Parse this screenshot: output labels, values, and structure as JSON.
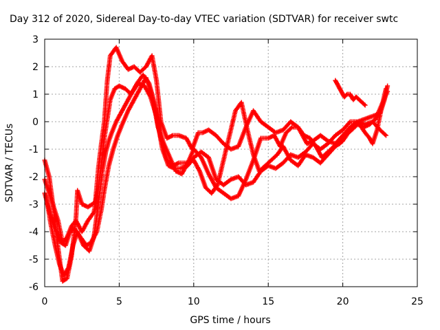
{
  "chart_data": {
    "type": "scatter",
    "title": "Day 312 of 2020, Sidereal Day-to-day VTEC variation (SDTVAR) for receiver swtc",
    "xlabel": "GPS time / hours",
    "ylabel": "SDTVAR / TECUs",
    "xlim": [
      0,
      25
    ],
    "ylim": [
      -6,
      3
    ],
    "x_ticks": [
      0,
      5,
      10,
      15,
      20,
      25
    ],
    "y_ticks": [
      -6,
      -5,
      -4,
      -3,
      -2,
      -1,
      0,
      1,
      2,
      3
    ],
    "grid": true,
    "marker": "+",
    "color": "#ff0000",
    "series": [
      {
        "name": "track-1",
        "points": [
          [
            0.0,
            -1.4
          ],
          [
            0.3,
            -2.0
          ],
          [
            0.6,
            -3.2
          ],
          [
            0.9,
            -4.6
          ],
          [
            1.2,
            -5.8
          ],
          [
            1.5,
            -5.7
          ],
          [
            1.8,
            -4.9
          ],
          [
            2.1,
            -3.5
          ],
          [
            2.2,
            -2.5
          ],
          [
            2.5,
            -3.0
          ],
          [
            2.9,
            -3.1
          ],
          [
            3.2,
            -3.0
          ],
          [
            3.4,
            -2.9
          ],
          [
            3.6,
            -1.7
          ],
          [
            3.8,
            -0.8
          ],
          [
            4.0,
            0.0
          ],
          [
            4.2,
            1.5
          ],
          [
            4.4,
            2.4
          ],
          [
            4.8,
            2.7
          ],
          [
            5.2,
            2.2
          ],
          [
            5.6,
            1.9
          ],
          [
            6.0,
            2.0
          ],
          [
            6.4,
            1.8
          ],
          [
            6.8,
            2.0
          ],
          [
            7.2,
            2.4
          ],
          [
            7.5,
            1.5
          ],
          [
            7.8,
            0.0
          ],
          [
            8.2,
            -0.6
          ],
          [
            8.6,
            -0.5
          ],
          [
            9.0,
            -0.5
          ],
          [
            9.5,
            -0.6
          ],
          [
            9.9,
            -1.0
          ],
          [
            10.3,
            -0.4
          ],
          [
            10.6,
            -0.4
          ],
          [
            11.0,
            -0.3
          ],
          [
            11.5,
            -0.5
          ],
          [
            12.0,
            -0.8
          ],
          [
            12.5,
            -1.0
          ],
          [
            13.0,
            -0.9
          ],
          [
            13.5,
            -0.2
          ],
          [
            14.0,
            0.4
          ],
          [
            14.5,
            0.0
          ],
          [
            15.0,
            -0.2
          ],
          [
            15.5,
            -0.4
          ],
          [
            16.0,
            -0.3
          ],
          [
            16.5,
            0.0
          ],
          [
            17.0,
            -0.2
          ],
          [
            17.6,
            -0.8
          ],
          [
            18.0,
            -0.7
          ],
          [
            18.5,
            -0.5
          ],
          [
            19.0,
            -0.7
          ],
          [
            19.5,
            -0.8
          ],
          [
            20.0,
            -0.5
          ],
          [
            20.5,
            -0.2
          ],
          [
            21.0,
            0.0
          ],
          [
            21.5,
            -0.4
          ],
          [
            21.8,
            -0.6
          ],
          [
            22.0,
            -0.8
          ],
          [
            22.3,
            -0.3
          ],
          [
            22.6,
            0.5
          ],
          [
            22.9,
            1.2
          ]
        ]
      },
      {
        "name": "track-2",
        "points": [
          [
            0.0,
            -2.1
          ],
          [
            0.3,
            -2.6
          ],
          [
            0.6,
            -3.1
          ],
          [
            0.9,
            -3.6
          ],
          [
            1.2,
            -4.4
          ],
          [
            1.5,
            -4.2
          ],
          [
            1.8,
            -3.8
          ],
          [
            2.1,
            -3.6
          ],
          [
            2.5,
            -4.0
          ],
          [
            2.9,
            -3.6
          ],
          [
            3.3,
            -3.3
          ],
          [
            3.6,
            -2.4
          ],
          [
            3.8,
            -1.6
          ],
          [
            4.0,
            -0.6
          ],
          [
            4.2,
            0.1
          ],
          [
            4.4,
            0.8
          ],
          [
            4.7,
            1.2
          ],
          [
            5.0,
            1.3
          ],
          [
            5.4,
            1.2
          ],
          [
            5.8,
            1.0
          ],
          [
            6.2,
            1.4
          ],
          [
            6.6,
            1.7
          ],
          [
            7.0,
            1.4
          ],
          [
            7.4,
            0.6
          ],
          [
            7.8,
            -0.6
          ],
          [
            8.2,
            -1.4
          ],
          [
            8.6,
            -1.6
          ],
          [
            9.0,
            -1.5
          ],
          [
            9.5,
            -1.5
          ],
          [
            10.0,
            -1.4
          ],
          [
            10.4,
            -1.8
          ],
          [
            10.8,
            -2.4
          ],
          [
            11.2,
            -2.6
          ],
          [
            11.6,
            -2.3
          ],
          [
            12.0,
            -1.4
          ],
          [
            12.4,
            -0.5
          ],
          [
            12.8,
            0.4
          ],
          [
            13.2,
            0.7
          ],
          [
            13.6,
            -0.3
          ],
          [
            14.0,
            -1.2
          ],
          [
            14.4,
            -1.8
          ],
          [
            14.8,
            -1.6
          ],
          [
            15.2,
            -1.4
          ],
          [
            15.6,
            -1.2
          ],
          [
            16.0,
            -0.9
          ],
          [
            16.5,
            -1.4
          ],
          [
            17.0,
            -1.6
          ],
          [
            17.5,
            -1.2
          ],
          [
            18.0,
            -1.3
          ],
          [
            18.5,
            -1.5
          ],
          [
            19.0,
            -1.2
          ],
          [
            19.5,
            -0.9
          ],
          [
            20.0,
            -0.7
          ],
          [
            20.5,
            -0.3
          ],
          [
            21.0,
            0.0
          ],
          [
            21.5,
            0.1
          ],
          [
            22.0,
            0.2
          ],
          [
            22.5,
            0.3
          ],
          [
            22.8,
            0.8
          ],
          [
            23.0,
            1.3
          ]
        ]
      },
      {
        "name": "track-3",
        "points": [
          [
            0.1,
            -2.7
          ],
          [
            0.4,
            -3.7
          ],
          [
            0.7,
            -4.5
          ],
          [
            1.0,
            -5.2
          ],
          [
            1.3,
            -5.6
          ],
          [
            1.6,
            -5.3
          ],
          [
            1.9,
            -4.5
          ],
          [
            2.2,
            -4.0
          ],
          [
            2.6,
            -4.5
          ],
          [
            3.0,
            -4.7
          ],
          [
            3.3,
            -4.2
          ],
          [
            3.6,
            -3.0
          ],
          [
            3.9,
            -1.7
          ],
          [
            4.1,
            -1.1
          ],
          [
            4.3,
            -0.7
          ],
          [
            4.5,
            -0.4
          ],
          [
            4.8,
            0.0
          ],
          [
            5.1,
            0.3
          ],
          [
            5.5,
            0.7
          ],
          [
            5.9,
            1.1
          ],
          [
            6.3,
            1.4
          ],
          [
            6.7,
            1.3
          ],
          [
            7.1,
            0.9
          ],
          [
            7.5,
            0.2
          ],
          [
            7.9,
            -1.0
          ],
          [
            8.3,
            -1.6
          ],
          [
            8.7,
            -1.7
          ],
          [
            9.1,
            -1.7
          ],
          [
            9.6,
            -1.6
          ],
          [
            10.0,
            -1.3
          ],
          [
            10.5,
            -1.1
          ],
          [
            11.0,
            -1.3
          ],
          [
            11.5,
            -2.1
          ],
          [
            12.0,
            -2.3
          ],
          [
            12.5,
            -2.1
          ],
          [
            13.0,
            -2.0
          ],
          [
            13.5,
            -2.3
          ],
          [
            14.0,
            -2.2
          ],
          [
            14.5,
            -1.8
          ],
          [
            15.0,
            -1.6
          ],
          [
            15.5,
            -1.7
          ],
          [
            16.0,
            -1.5
          ],
          [
            16.5,
            -1.2
          ],
          [
            17.0,
            -1.3
          ],
          [
            17.5,
            -1.1
          ],
          [
            18.0,
            -0.8
          ],
          [
            18.5,
            -1.0
          ],
          [
            19.0,
            -0.8
          ],
          [
            19.5,
            -0.5
          ],
          [
            20.0,
            -0.3
          ],
          [
            20.5,
            0.0
          ],
          [
            21.0,
            0.0
          ],
          [
            21.5,
            -0.1
          ],
          [
            22.0,
            0.0
          ],
          [
            22.5,
            -0.3
          ],
          [
            22.9,
            -0.5
          ]
        ]
      },
      {
        "name": "track-4",
        "points": [
          [
            0.0,
            -2.6
          ],
          [
            0.2,
            -3.0
          ],
          [
            0.5,
            -3.6
          ],
          [
            0.8,
            -4.0
          ],
          [
            1.1,
            -4.4
          ],
          [
            1.4,
            -4.5
          ],
          [
            1.7,
            -4.0
          ],
          [
            2.0,
            -3.9
          ],
          [
            2.4,
            -4.2
          ],
          [
            2.8,
            -4.5
          ],
          [
            3.1,
            -4.4
          ],
          [
            3.5,
            -4.0
          ],
          [
            3.8,
            -3.2
          ],
          [
            4.0,
            -2.5
          ],
          [
            4.3,
            -1.6
          ],
          [
            4.6,
            -1.0
          ],
          [
            4.9,
            -0.5
          ],
          [
            5.2,
            -0.1
          ],
          [
            5.6,
            0.4
          ],
          [
            6.0,
            0.8
          ],
          [
            6.4,
            1.2
          ],
          [
            6.8,
            1.6
          ],
          [
            7.2,
            1.0
          ],
          [
            7.6,
            -0.2
          ],
          [
            8.0,
            -0.8
          ],
          [
            8.4,
            -1.3
          ],
          [
            8.8,
            -1.8
          ],
          [
            9.2,
            -1.9
          ],
          [
            9.6,
            -1.5
          ],
          [
            10.0,
            -1.0
          ],
          [
            10.5,
            -1.3
          ],
          [
            11.0,
            -1.9
          ],
          [
            11.5,
            -2.4
          ],
          [
            12.0,
            -2.6
          ],
          [
            12.5,
            -2.8
          ],
          [
            13.0,
            -2.7
          ],
          [
            13.5,
            -2.1
          ],
          [
            14.0,
            -1.4
          ],
          [
            14.5,
            -0.6
          ],
          [
            15.0,
            -0.6
          ],
          [
            15.4,
            -0.5
          ],
          [
            15.8,
            -0.9
          ],
          [
            16.2,
            -0.4
          ],
          [
            16.6,
            -0.2
          ],
          [
            17.0,
            -0.2
          ],
          [
            17.4,
            -0.5
          ],
          [
            17.8,
            -0.6
          ],
          [
            18.2,
            -0.9
          ],
          [
            18.6,
            -1.3
          ],
          [
            19.0,
            -1.1
          ],
          [
            19.4,
            -0.9
          ],
          [
            19.8,
            -0.8
          ],
          [
            20.2,
            -0.5
          ],
          [
            20.6,
            -0.3
          ],
          [
            21.0,
            -0.1
          ],
          [
            21.4,
            -0.2
          ],
          [
            21.8,
            -0.1
          ],
          [
            22.2,
            0.1
          ],
          [
            22.6,
            0.6
          ],
          [
            23.0,
            1.1
          ]
        ]
      },
      {
        "name": "track-5",
        "points": [
          [
            19.5,
            1.5
          ],
          [
            19.7,
            1.3
          ],
          [
            19.9,
            1.1
          ],
          [
            20.1,
            0.9
          ],
          [
            20.3,
            1.0
          ],
          [
            20.5,
            1.0
          ],
          [
            20.7,
            0.8
          ],
          [
            20.9,
            0.9
          ],
          [
            21.1,
            0.8
          ],
          [
            21.3,
            0.7
          ],
          [
            21.5,
            0.6
          ]
        ]
      }
    ]
  }
}
